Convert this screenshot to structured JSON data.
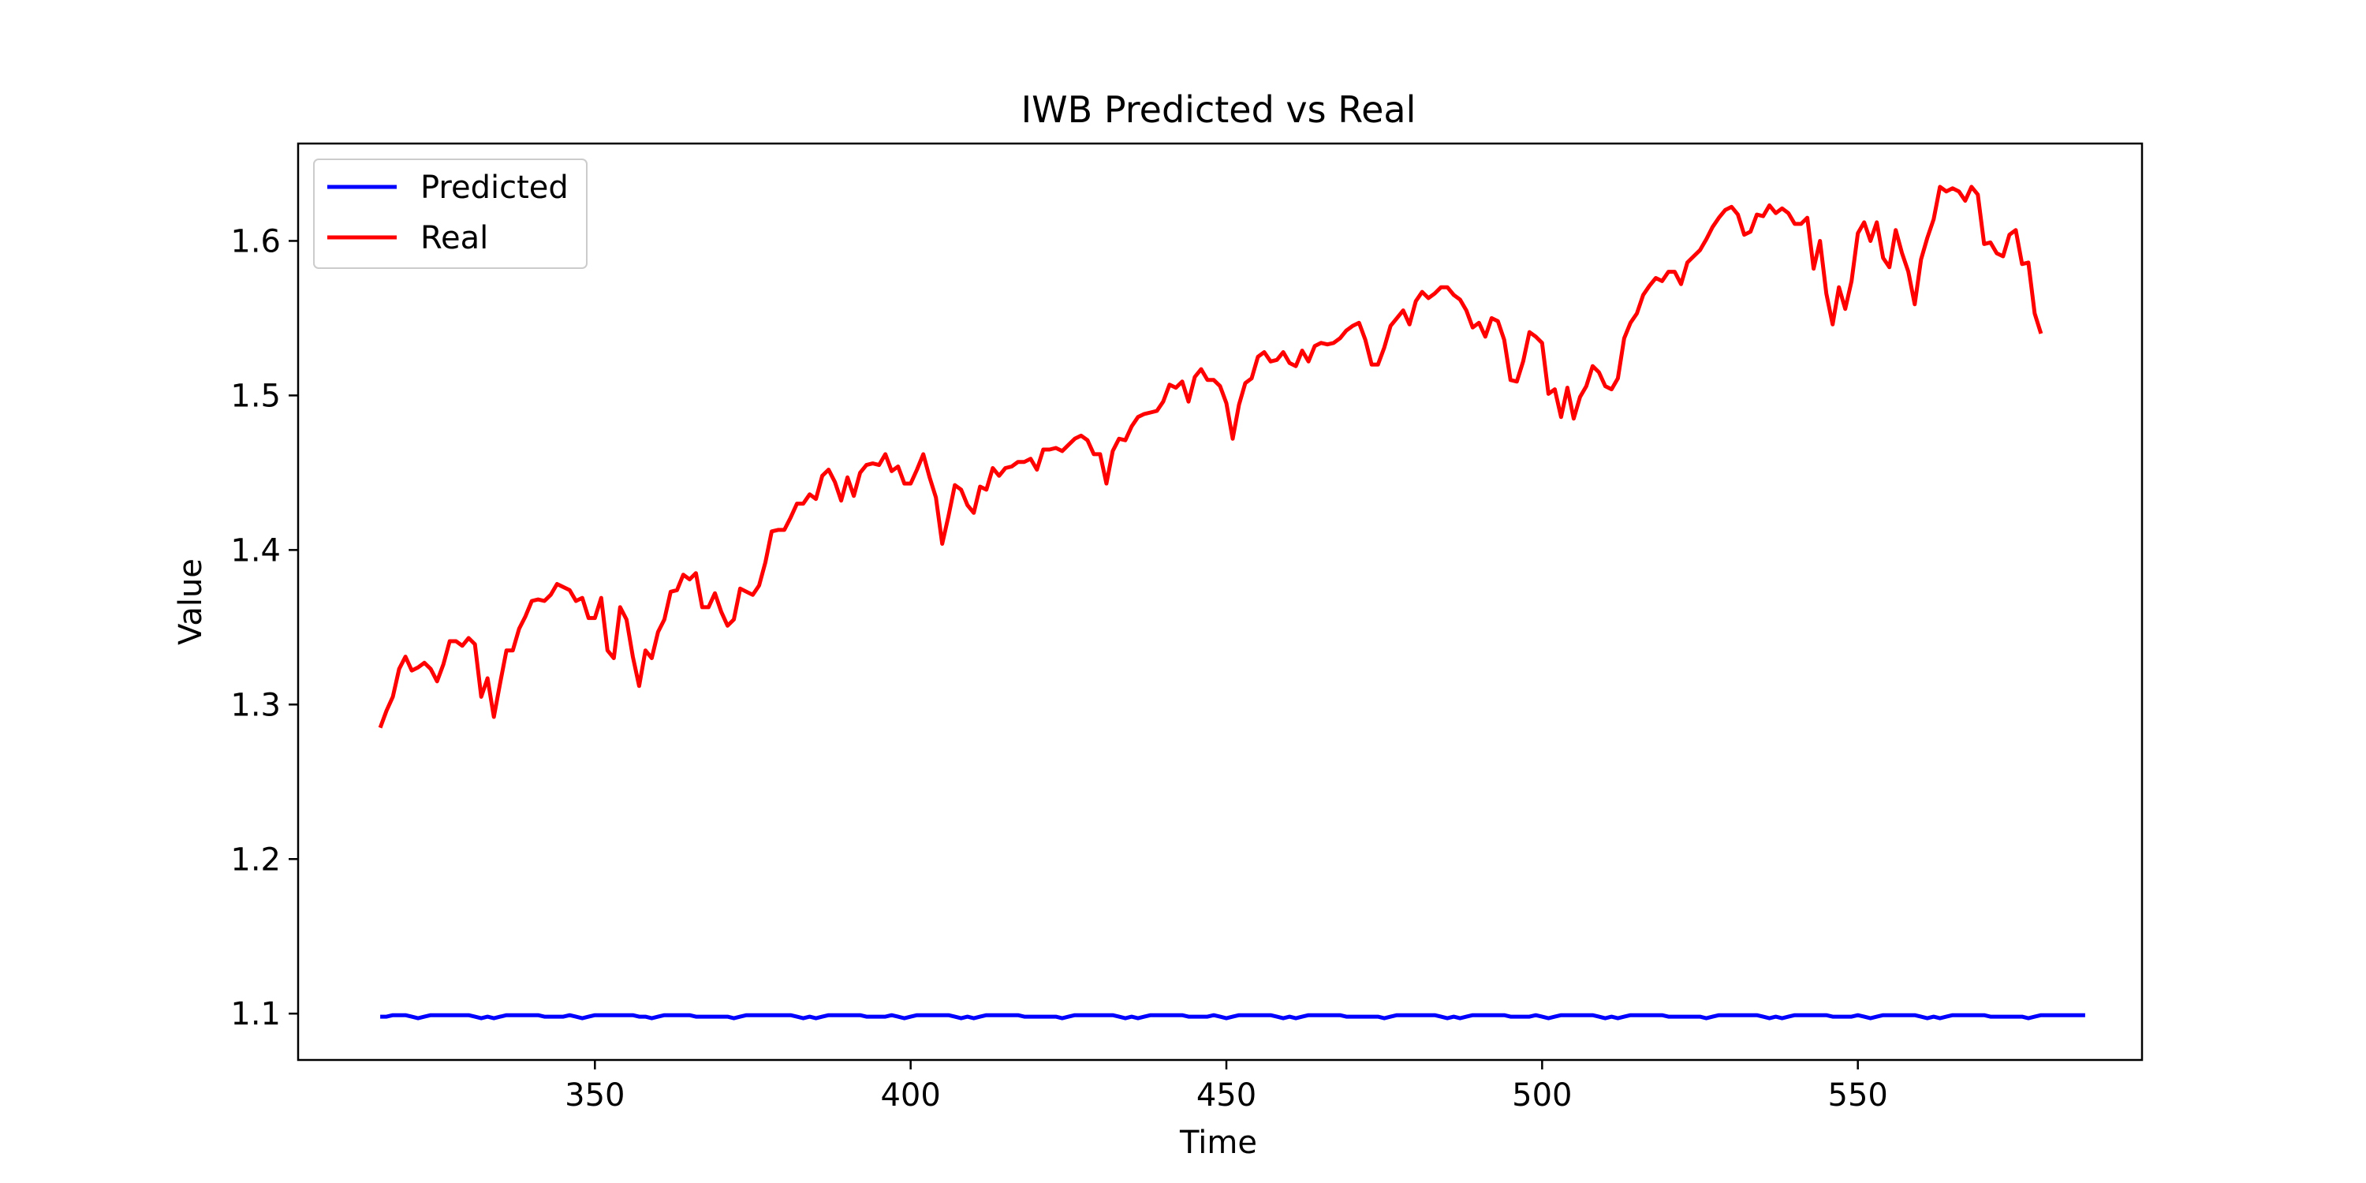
{
  "chart_data": {
    "type": "line",
    "title": "IWB Predicted vs Real",
    "xlabel": "Time",
    "ylabel": "Value",
    "xlim": [
      303,
      595
    ],
    "ylim": [
      1.07,
      1.663
    ],
    "x_ticks": [
      350,
      400,
      450,
      500,
      550
    ],
    "y_ticks": [
      1.1,
      1.2,
      1.3,
      1.4,
      1.5,
      1.6
    ],
    "x_tick_labels": [
      "350",
      "400",
      "450",
      "500",
      "550"
    ],
    "y_tick_labels": [
      "1.1",
      "1.2",
      "1.3",
      "1.4",
      "1.5",
      "1.6"
    ],
    "grid": false,
    "legend": "upper-left",
    "x_start": 316,
    "series": [
      {
        "name": "Predicted",
        "color": "#0000ff",
        "values": [
          1.098,
          1.098,
          1.099,
          1.099,
          1.099,
          1.098,
          1.097,
          1.098,
          1.099,
          1.099,
          1.099,
          1.099,
          1.099,
          1.099,
          1.099,
          1.098,
          1.097,
          1.098,
          1.097,
          1.098,
          1.099,
          1.099,
          1.099,
          1.099,
          1.099,
          1.099,
          1.098,
          1.098,
          1.098,
          1.098,
          1.099,
          1.098,
          1.097,
          1.098,
          1.099,
          1.099,
          1.099,
          1.099,
          1.099,
          1.099,
          1.099,
          1.098,
          1.098,
          1.097,
          1.098,
          1.099,
          1.099,
          1.099,
          1.099,
          1.099,
          1.098,
          1.098,
          1.098,
          1.098,
          1.098,
          1.098,
          1.097,
          1.098,
          1.099,
          1.099,
          1.099,
          1.099,
          1.099,
          1.099,
          1.099,
          1.099,
          1.098,
          1.097,
          1.098,
          1.097,
          1.098,
          1.099,
          1.099,
          1.099,
          1.099,
          1.099,
          1.099,
          1.098,
          1.098,
          1.098,
          1.098,
          1.099,
          1.098,
          1.097,
          1.098,
          1.099,
          1.099,
          1.099,
          1.099,
          1.099,
          1.099,
          1.098,
          1.097,
          1.098,
          1.097,
          1.098,
          1.099,
          1.099,
          1.099,
          1.099,
          1.099,
          1.099,
          1.098,
          1.098,
          1.098,
          1.098,
          1.098,
          1.098,
          1.097,
          1.098,
          1.099,
          1.099,
          1.099,
          1.099,
          1.099,
          1.099,
          1.099,
          1.098,
          1.097,
          1.098,
          1.097,
          1.098,
          1.099,
          1.099,
          1.099,
          1.099,
          1.099,
          1.099,
          1.098,
          1.098,
          1.098,
          1.098,
          1.099,
          1.098,
          1.097,
          1.098,
          1.099,
          1.099,
          1.099,
          1.099,
          1.099,
          1.099,
          1.098,
          1.097,
          1.098,
          1.097,
          1.098,
          1.099,
          1.099,
          1.099,
          1.099,
          1.099,
          1.099,
          1.098,
          1.098,
          1.098,
          1.098,
          1.098,
          1.098,
          1.097,
          1.098,
          1.099,
          1.099,
          1.099,
          1.099,
          1.099,
          1.099,
          1.099,
          1.098,
          1.097,
          1.098,
          1.097,
          1.098,
          1.099,
          1.099,
          1.099,
          1.099,
          1.099,
          1.099,
          1.098,
          1.098,
          1.098,
          1.098,
          1.099,
          1.098,
          1.097,
          1.098,
          1.099,
          1.099,
          1.099,
          1.099,
          1.099,
          1.099,
          1.098,
          1.097,
          1.098,
          1.097,
          1.098,
          1.099,
          1.099,
          1.099,
          1.099,
          1.099,
          1.099,
          1.098,
          1.098,
          1.098,
          1.098,
          1.098,
          1.098,
          1.097,
          1.098,
          1.099,
          1.099,
          1.099,
          1.099,
          1.099,
          1.099,
          1.099,
          1.098,
          1.097,
          1.098,
          1.097,
          1.098,
          1.099,
          1.099,
          1.099,
          1.099,
          1.099,
          1.099,
          1.098,
          1.098,
          1.098,
          1.098,
          1.099,
          1.098,
          1.097,
          1.098,
          1.099,
          1.099,
          1.099,
          1.099,
          1.099,
          1.099,
          1.098,
          1.097,
          1.098,
          1.097,
          1.098,
          1.099,
          1.099,
          1.099,
          1.099,
          1.099,
          1.099,
          1.098,
          1.098,
          1.098,
          1.098,
          1.098,
          1.098,
          1.097,
          1.098,
          1.099,
          1.099,
          1.099,
          1.099,
          1.099,
          1.099,
          1.099,
          1.099
        ]
      },
      {
        "name": "Real",
        "color": "#ff0000",
        "values": [
          1.285,
          1.296,
          1.305,
          1.323,
          1.331,
          1.322,
          1.324,
          1.327,
          1.323,
          1.315,
          1.326,
          1.341,
          1.341,
          1.338,
          1.343,
          1.339,
          1.305,
          1.317,
          1.292,
          1.314,
          1.335,
          1.335,
          1.349,
          1.357,
          1.367,
          1.368,
          1.367,
          1.371,
          1.378,
          1.376,
          1.374,
          1.367,
          1.369,
          1.356,
          1.356,
          1.369,
          1.335,
          1.33,
          1.363,
          1.355,
          1.331,
          1.312,
          1.335,
          1.33,
          1.347,
          1.355,
          1.373,
          1.374,
          1.384,
          1.381,
          1.385,
          1.363,
          1.363,
          1.372,
          1.36,
          1.351,
          1.355,
          1.375,
          1.373,
          1.371,
          1.377,
          1.392,
          1.412,
          1.413,
          1.413,
          1.421,
          1.43,
          1.43,
          1.436,
          1.433,
          1.448,
          1.452,
          1.444,
          1.432,
          1.447,
          1.435,
          1.45,
          1.455,
          1.456,
          1.455,
          1.462,
          1.451,
          1.454,
          1.443,
          1.443,
          1.452,
          1.462,
          1.447,
          1.434,
          1.404,
          1.422,
          1.442,
          1.439,
          1.429,
          1.424,
          1.441,
          1.439,
          1.453,
          1.448,
          1.453,
          1.454,
          1.457,
          1.457,
          1.459,
          1.452,
          1.465,
          1.465,
          1.466,
          1.464,
          1.468,
          1.472,
          1.474,
          1.471,
          1.462,
          1.462,
          1.443,
          1.464,
          1.472,
          1.471,
          1.48,
          1.486,
          1.488,
          1.489,
          1.49,
          1.496,
          1.507,
          1.505,
          1.509,
          1.496,
          1.512,
          1.517,
          1.51,
          1.51,
          1.506,
          1.495,
          1.472,
          1.494,
          1.508,
          1.511,
          1.525,
          1.528,
          1.522,
          1.523,
          1.528,
          1.521,
          1.519,
          1.529,
          1.522,
          1.532,
          1.534,
          1.533,
          1.534,
          1.537,
          1.542,
          1.545,
          1.547,
          1.536,
          1.52,
          1.52,
          1.531,
          1.545,
          1.55,
          1.555,
          1.546,
          1.561,
          1.567,
          1.563,
          1.566,
          1.57,
          1.57,
          1.565,
          1.562,
          1.555,
          1.544,
          1.547,
          1.538,
          1.55,
          1.548,
          1.536,
          1.51,
          1.509,
          1.522,
          1.541,
          1.538,
          1.534,
          1.501,
          1.504,
          1.486,
          1.505,
          1.485,
          1.499,
          1.506,
          1.519,
          1.515,
          1.506,
          1.504,
          1.511,
          1.537,
          1.547,
          1.553,
          1.565,
          1.571,
          1.576,
          1.574,
          1.58,
          1.58,
          1.572,
          1.586,
          1.59,
          1.594,
          1.601,
          1.609,
          1.615,
          1.62,
          1.622,
          1.617,
          1.604,
          1.606,
          1.617,
          1.616,
          1.623,
          1.618,
          1.621,
          1.618,
          1.611,
          1.611,
          1.615,
          1.582,
          1.6,
          1.566,
          1.546,
          1.57,
          1.556,
          1.574,
          1.605,
          1.612,
          1.6,
          1.612,
          1.589,
          1.583,
          1.607,
          1.592,
          1.58,
          1.559,
          1.588,
          1.602,
          1.614,
          1.635,
          1.632,
          1.634,
          1.632,
          1.626,
          1.635,
          1.63,
          1.598,
          1.599,
          1.592,
          1.59,
          1.604,
          1.607,
          1.585,
          1.586,
          1.553,
          1.54
        ]
      }
    ]
  }
}
